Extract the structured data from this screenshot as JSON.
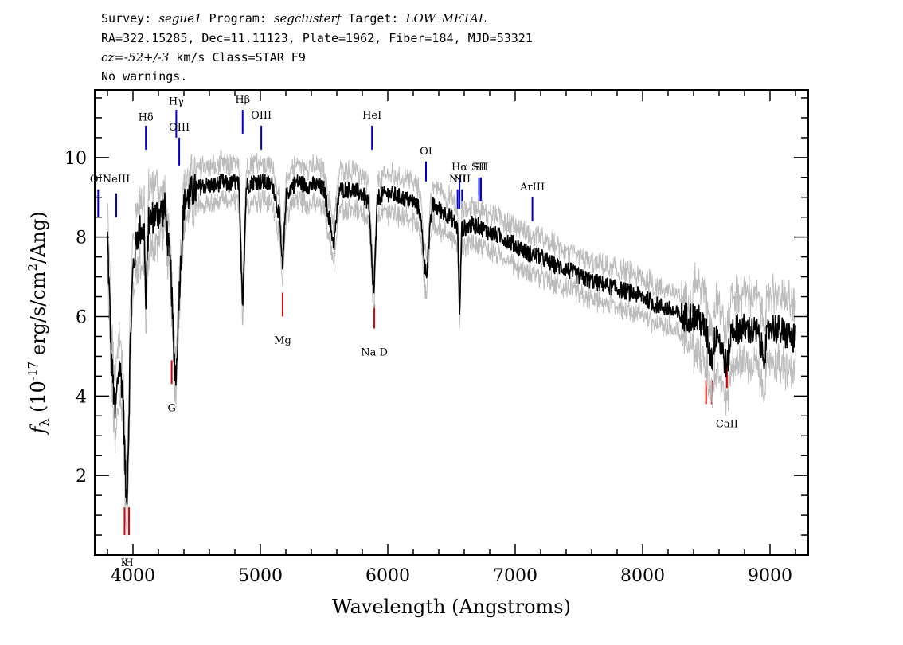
{
  "header": {
    "survey_label": "Survey:",
    "survey": "segue1",
    "program_label": "Program:",
    "program": "segclusterf",
    "target_label": "Target:",
    "target": "LOW_METAL",
    "line2": "RA=322.15285, Dec=11.11123, Plate=1962, Fiber=184, MJD=53321",
    "cz_label": "cz=",
    "cz_value": "-52+/-3",
    "cz_rest": " km/s Class=STAR F9",
    "warnings": "No warnings."
  },
  "chart_data": {
    "type": "line",
    "xlabel": "Wavelength (Angstroms)",
    "ylabel_prefix": "f",
    "ylabel_sub": "λ",
    "ylabel_main": " (10",
    "ylabel_exp": "-17",
    "ylabel_rest": " erg/s/cm",
    "ylabel_exp2": "2",
    "ylabel_end": "/Ang)",
    "xlim": [
      3700,
      9300
    ],
    "ylim": [
      0,
      11.7
    ],
    "x_ticks": [
      "4000",
      "5000",
      "6000",
      "7000",
      "8000",
      "9000"
    ],
    "x_tick_values": [
      4000,
      5000,
      6000,
      7000,
      8000,
      9000
    ],
    "y_ticks": [
      "2",
      "4",
      "6",
      "8",
      "10"
    ],
    "y_tick_values": [
      2,
      4,
      6,
      8,
      10
    ],
    "series": [
      {
        "color": "#000000",
        "x": [
          3800,
          3830,
          3860,
          3890,
          3920,
          3940,
          3950,
          3965,
          3980,
          4000,
          4030,
          4060,
          4090,
          4101,
          4120,
          4150,
          4200,
          4250,
          4300,
          4320,
          4340,
          4360,
          4400,
          4450,
          4500,
          4550,
          4600,
          4650,
          4700,
          4750,
          4800,
          4830,
          4861,
          4890,
          4950,
          5000,
          5100,
          5150,
          5175,
          5200,
          5250,
          5300,
          5350,
          5400,
          5450,
          5500,
          5577,
          5620,
          5700,
          5800,
          5850,
          5890,
          5920,
          6000,
          6100,
          6200,
          6250,
          6300,
          6350,
          6400,
          6500,
          6550,
          6563,
          6580,
          6650,
          6700,
          6800,
          6900,
          7000,
          7100,
          7200,
          7300,
          7400,
          7500,
          7600,
          7700,
          7800,
          7900,
          8000,
          8100,
          8200,
          8300,
          8400,
          8450,
          8500,
          8542,
          8580,
          8662,
          8700,
          8800,
          8900,
          8950,
          9000,
          9100,
          9200
        ],
        "values": [
          8.0,
          5.0,
          3.5,
          4.8,
          4.2,
          2.0,
          1.3,
          3.0,
          5.5,
          7.2,
          8.0,
          8.2,
          8.1,
          6.0,
          8.3,
          8.5,
          8.6,
          8.7,
          7.0,
          5.0,
          4.5,
          6.5,
          8.8,
          9.1,
          9.2,
          9.3,
          9.3,
          9.3,
          9.4,
          9.3,
          9.4,
          9.3,
          6.3,
          9.3,
          9.4,
          9.4,
          9.3,
          8.5,
          7.1,
          9.0,
          9.3,
          9.4,
          9.3,
          9.3,
          9.3,
          9.2,
          7.8,
          9.2,
          9.2,
          9.1,
          8.8,
          6.5,
          9.0,
          9.1,
          9.0,
          8.9,
          8.7,
          7.0,
          8.8,
          8.7,
          8.5,
          8.2,
          5.9,
          8.2,
          8.3,
          8.3,
          8.1,
          8.0,
          7.8,
          7.6,
          7.5,
          7.3,
          7.2,
          7.0,
          6.9,
          6.8,
          6.7,
          6.6,
          6.5,
          6.3,
          6.2,
          6.0,
          6.0,
          5.9,
          5.6,
          4.9,
          5.7,
          4.7,
          5.7,
          5.7,
          5.6,
          5.0,
          5.8,
          5.6,
          5.4
        ]
      }
    ],
    "line_markers": [
      {
        "name": "OII",
        "x": 3727,
        "color": "#0000cc",
        "y0": 8.5,
        "y1": 9.2,
        "label_y": 9.3
      },
      {
        "name": "NeIII",
        "x": 3869,
        "color": "#0000cc",
        "y0": 8.5,
        "y1": 9.1,
        "label_y": 9.3
      },
      {
        "name": "Hδ",
        "x": 4101,
        "color": "#0000cc",
        "y0": 10.2,
        "y1": 10.8,
        "label_y": 10.85
      },
      {
        "name": "Hγ",
        "x": 4340,
        "color": "#0000cc",
        "y0": 10.5,
        "y1": 11.2,
        "label_y": 11.25
      },
      {
        "name": "OIII",
        "x": 4363,
        "color": "#0000cc",
        "y0": 9.8,
        "y1": 10.5,
        "label_y": 10.6
      },
      {
        "name": "Hβ",
        "x": 4861,
        "color": "#0000cc",
        "y0": 10.6,
        "y1": 11.2,
        "label_y": 11.3
      },
      {
        "name": "OIII",
        "x": 5007,
        "color": "#0000cc",
        "y0": 10.2,
        "y1": 10.8,
        "label_y": 10.9
      },
      {
        "name": "HeI",
        "x": 5876,
        "color": "#0000cc",
        "y0": 10.2,
        "y1": 10.8,
        "label_y": 10.9
      },
      {
        "name": "OI",
        "x": 6300,
        "color": "#0000cc",
        "y0": 9.4,
        "y1": 9.9,
        "label_y": 10.0
      },
      {
        "name": "NII",
        "x": 6548,
        "color": "#0000cc",
        "y0": 8.7,
        "y1": 9.2,
        "label_y": 9.3
      },
      {
        "name": "Hα",
        "x": 6563,
        "color": "#0000cc",
        "y0": 8.7,
        "y1": 9.5,
        "label_y": 9.6
      },
      {
        "name": "NII",
        "x": 6583,
        "color": "#0000cc",
        "y0": 8.7,
        "y1": 9.2,
        "label_y": 9.3
      },
      {
        "name": "SII",
        "x": 6716,
        "color": "#0000cc",
        "y0": 8.9,
        "y1": 9.5,
        "label_y": 9.6
      },
      {
        "name": "SII",
        "x": 6731,
        "color": "#0000cc",
        "y0": 8.9,
        "y1": 9.5,
        "label_y": 9.6
      },
      {
        "name": "ArIII",
        "x": 7135,
        "color": "#0000cc",
        "y0": 8.4,
        "y1": 9.0,
        "label_y": 9.1
      },
      {
        "name": "K",
        "x": 3934,
        "color": "#dd0000",
        "y0": 0.5,
        "y1": 1.2,
        "label_y": 0.0
      },
      {
        "name": "H",
        "x": 3969,
        "color": "#dd0000",
        "y0": 0.5,
        "y1": 1.2,
        "label_y": 0.0
      },
      {
        "name": "G",
        "x": 4304,
        "color": "#dd0000",
        "y0": 4.3,
        "y1": 4.9,
        "label_y": 3.9
      },
      {
        "name": "Mg",
        "x": 5175,
        "color": "#dd0000",
        "y0": 6.0,
        "y1": 6.6,
        "label_y": 5.6
      },
      {
        "name": "Na D",
        "x": 5894,
        "color": "#dd0000",
        "y0": 5.7,
        "y1": 6.3,
        "label_y": 5.3
      },
      {
        "name": "",
        "x": 8498,
        "color": "#dd0000",
        "y0": 3.8,
        "y1": 4.4,
        "label_y": 0
      },
      {
        "name": "",
        "x": 8542,
        "color": "#dd0000",
        "y0": 3.8,
        "y1": 4.4,
        "label_y": 0
      },
      {
        "name": "CaII",
        "x": 8662,
        "color": "#dd0000",
        "y0": 4.2,
        "y1": 4.8,
        "label_y": 3.5
      }
    ],
    "legend": "none",
    "grid": false
  }
}
